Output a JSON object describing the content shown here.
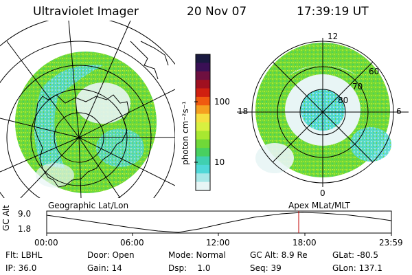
{
  "header": {
    "title": "Ultraviolet Imager",
    "date": "20 Nov 07",
    "time": "17:39:19 UT"
  },
  "colorbar": {
    "unit_label": "photon cm⁻²s⁻¹",
    "ticks": [
      "100",
      "10"
    ],
    "colors": [
      "#1a1a40",
      "#3a1055",
      "#6e1040",
      "#a01020",
      "#d02010",
      "#f05a10",
      "#f5a020",
      "#f5e040",
      "#d8f040",
      "#a8e830",
      "#70d838",
      "#48d060",
      "#40d0b0",
      "#50d8d8",
      "#a8e8e8",
      "#e8f5f5"
    ]
  },
  "left_map": {
    "label": "Geographic Lat/Lon"
  },
  "right_map": {
    "label": "Apex MLat/MLT",
    "mlt_labels": {
      "top": "12",
      "left": "18",
      "right": "6",
      "bottom": "0"
    },
    "lat_labels": [
      "60",
      "70",
      "80"
    ]
  },
  "timeline": {
    "ylabel": "GC Alt",
    "yticks": [
      "9.0",
      "1.8"
    ],
    "xticks": [
      "00:00",
      "06:00",
      "12:00",
      "18:00",
      "23:59"
    ],
    "marker_time": "17:39"
  },
  "footer": {
    "row1": {
      "flt": "Flt: LBHL",
      "door": "Door: Open",
      "mode": "Mode: Normal",
      "gcalt": "GC Alt: 8.9 Re",
      "glat": "GLat: -80.5"
    },
    "row2": {
      "ip": "IP: 36.0",
      "gain": "Gain: 14",
      "dsp": "Dsp:    1.0",
      "seq": "Seq: 39",
      "glon": "GLon: 137.1"
    }
  }
}
